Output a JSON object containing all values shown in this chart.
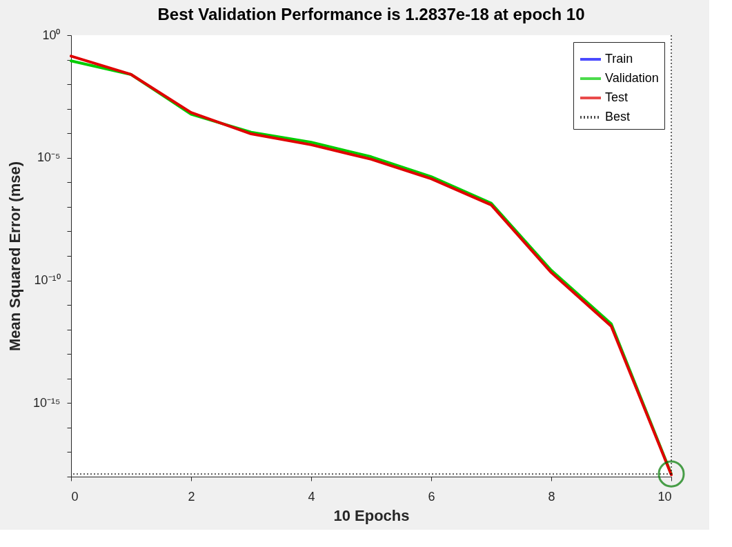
{
  "chart_data": {
    "type": "line",
    "title": "Best Validation Performance is 1.2837e-18 at epoch 10",
    "xlabel": "10 Epochs",
    "ylabel": "Mean Squared Error  (mse)",
    "x": [
      0,
      1,
      2,
      3,
      4,
      5,
      6,
      7,
      8,
      9,
      10
    ],
    "series": [
      {
        "name": "Train",
        "color": "#0000ff",
        "values": [
          null,
          null,
          null,
          null,
          null,
          null,
          null,
          null,
          null,
          null,
          null
        ]
      },
      {
        "name": "Validation",
        "color": "#00cc00",
        "values": [
          0.09,
          0.025,
          0.0006,
          0.00011,
          4.3e-05,
          1.1e-05,
          1.7e-06,
          1.4e-07,
          2.6e-10,
          1.7e-12,
          1.2837e-18
        ]
      },
      {
        "name": "Test",
        "color": "#e00000",
        "values": [
          0.14,
          0.025,
          0.0007,
          9.5e-05,
          3.4e-05,
          8.7e-06,
          1.4e-06,
          1.2e-07,
          2.1e-10,
          1.35e-12,
          1.2e-18
        ]
      },
      {
        "type": "scatter",
        "color": "#007a00",
        "marker": "circle",
        "x": [
          10
        ],
        "values": [
          1.2837e-18
        ]
      }
    ],
    "ref_lines": [
      {
        "axis": "y",
        "value": 1.2837e-18,
        "label": "Best",
        "color": "#000000",
        "line_style": "dotted"
      },
      {
        "axis": "x",
        "value": 10,
        "color": "#000000",
        "line_style": "dotted"
      }
    ],
    "log": "y",
    "xlim": [
      0,
      10
    ],
    "xticks": [
      0,
      2,
      4,
      6,
      8,
      10
    ],
    "ylim": [
      1e-18,
      1
    ],
    "yticks": [
      {
        "value": 1e-18,
        "label": null
      },
      {
        "value": 1e-17,
        "label": null
      },
      {
        "value": 1e-16,
        "label": null
      },
      {
        "value": 1e-15,
        "label": "10⁻¹⁵"
      },
      {
        "value": 1e-14,
        "label": null
      },
      {
        "value": 1e-13,
        "label": null
      },
      {
        "value": 1e-12,
        "label": null
      },
      {
        "value": 1e-11,
        "label": null
      },
      {
        "value": 1e-10,
        "label": "10⁻¹⁰"
      },
      {
        "value": 1e-09,
        "label": null
      },
      {
        "value": 1e-08,
        "label": null
      },
      {
        "value": 1e-07,
        "label": null
      },
      {
        "value": 1e-06,
        "label": null
      },
      {
        "value": 1e-05,
        "label": "10⁻⁵"
      },
      {
        "value": 0.0001,
        "label": null
      },
      {
        "value": 0.001,
        "label": null
      },
      {
        "value": 0.01,
        "label": null
      },
      {
        "value": 0.1,
        "label": null
      },
      {
        "value": 1,
        "label": "10⁰"
      }
    ],
    "grid": false,
    "legend": "top right",
    "line_style": "solid"
  }
}
